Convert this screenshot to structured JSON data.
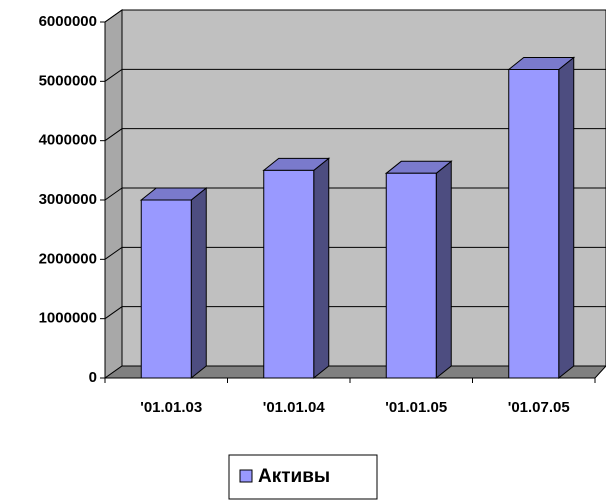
{
  "chart_data": {
    "type": "bar3d",
    "categories": [
      "'01.01.03",
      "'01.01.04",
      "'01.01.05",
      "'01.07.05"
    ],
    "series": [
      {
        "name": "Активы",
        "color": "#9999ff",
        "values": [
          3000000,
          3500000,
          3450000,
          5200000
        ]
      }
    ],
    "ylim": [
      0,
      6000000
    ],
    "yticks": [
      0,
      1000000,
      2000000,
      3000000,
      4000000,
      5000000,
      6000000
    ],
    "grid": true,
    "legend": "bottom"
  }
}
